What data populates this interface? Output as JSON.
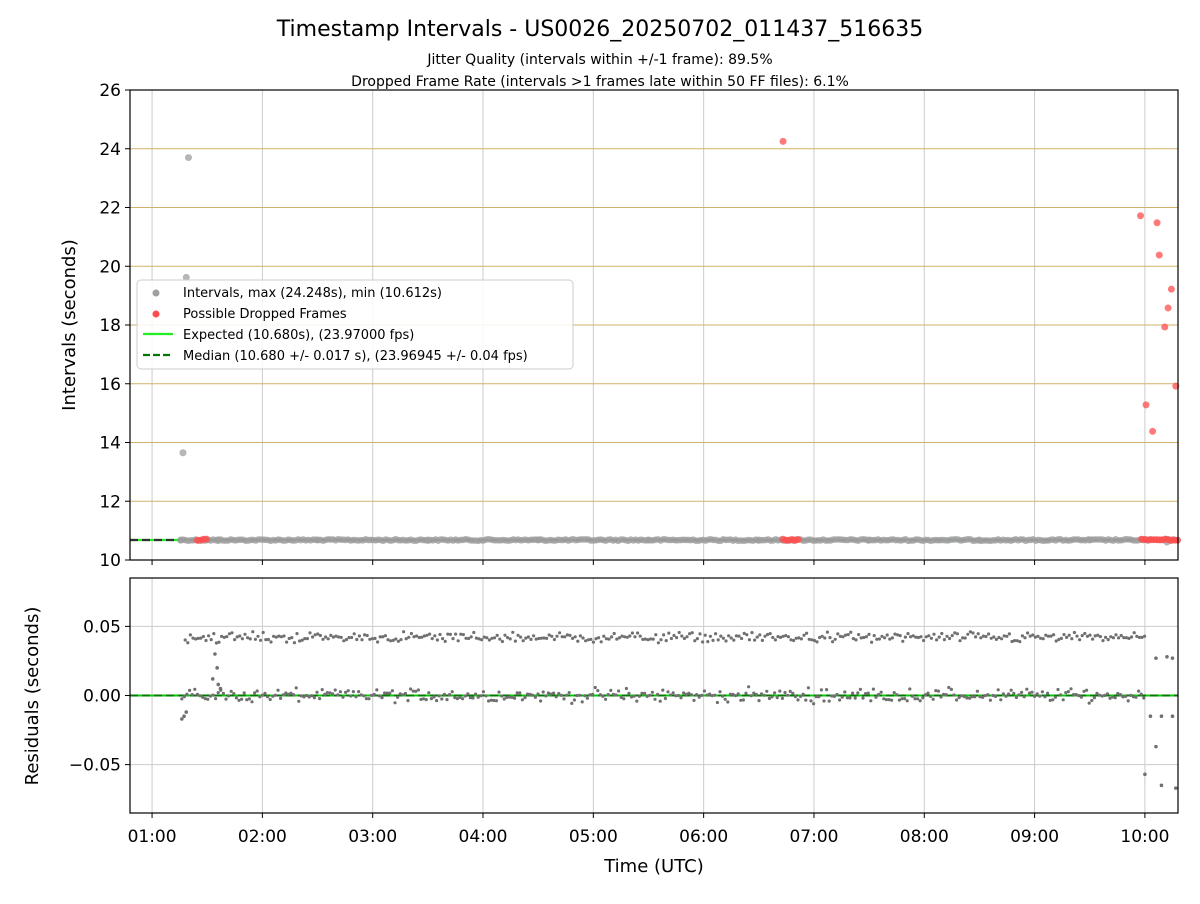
{
  "chart_data": [
    {
      "type": "scatter",
      "title": "Timestamp Intervals - US0026_20250702_011437_516635",
      "subtitle_lines": [
        "Jitter Quality (intervals within +/-1 frame): 89.5%",
        "Dropped Frame Rate (intervals >1 frames late within 50 FF files): 6.1%"
      ],
      "xlabel": "",
      "ylabel": "Intervals (seconds)",
      "x_unit": "hours since 00:00 UTC",
      "xlim": [
        0.8,
        10.3
      ],
      "ylim": [
        10,
        26
      ],
      "y_ticks": [
        10,
        12,
        14,
        16,
        18,
        20,
        22,
        24,
        26
      ],
      "y_tick_labels": [
        "10",
        "12",
        "14",
        "16",
        "18",
        "20",
        "22",
        "24",
        "26"
      ],
      "x_ticks": [
        1,
        2,
        3,
        4,
        5,
        6,
        7,
        8,
        9,
        10
      ],
      "grid": true,
      "legend_position": "center-left",
      "legend": [
        "Intervals, max (24.248s), min (10.612s)",
        "Possible Dropped Frames",
        "Expected (10.680s), (23.97000 fps)",
        "Median (10.680 +/- 0.017 s), (23.96945 +/- 0.04 fps)"
      ],
      "colors": {
        "intervals": "#9e9e9e",
        "dropped": "#ff4d4d",
        "expected": "#22ee22",
        "median": "#007700",
        "hgrid": "#d2b26a",
        "vgrid": "#cccccc"
      },
      "series": [
        {
          "name": "Intervals, max (24.248s), min (10.612s)",
          "points": [
            [
              1.26,
              10.68
            ],
            [
              1.28,
              13.65
            ],
            [
              1.31,
              19.62
            ],
            [
              1.33,
              23.7
            ],
            [
              1.6,
              10.66
            ],
            [
              2.5,
              10.68
            ],
            [
              3.5,
              10.68
            ],
            [
              4.5,
              10.68
            ],
            [
              5.5,
              10.68
            ],
            [
              6.5,
              10.68
            ],
            [
              7.5,
              10.68
            ],
            [
              8.5,
              10.68
            ],
            [
              9.5,
              10.68
            ],
            [
              10.2,
              10.61
            ]
          ],
          "dense_band": {
            "x_start": 1.26,
            "x_end": 10.3,
            "y": 10.68
          }
        },
        {
          "name": "Possible Dropped Frames",
          "points": [
            [
              6.72,
              24.25
            ],
            [
              9.96,
              21.72
            ],
            [
              10.01,
              15.28
            ],
            [
              10.07,
              14.38
            ],
            [
              10.11,
              21.48
            ],
            [
              10.13,
              20.38
            ],
            [
              10.18,
              17.93
            ],
            [
              10.21,
              18.58
            ],
            [
              10.24,
              19.22
            ],
            [
              10.28,
              15.92
            ]
          ],
          "clusters": [
            {
              "x_start": 1.41,
              "x_end": 1.5,
              "y": 10.69
            },
            {
              "x_start": 6.72,
              "x_end": 6.87,
              "y": 10.69
            },
            {
              "x_start": 9.97,
              "x_end": 10.3,
              "y": 10.69
            }
          ]
        },
        {
          "name": "Expected (10.680s), (23.97000 fps)",
          "line_y": 10.68
        },
        {
          "name": "Median (10.680 +/- 0.017 s), (23.96945 +/- 0.04 fps)",
          "line_y": 10.68
        }
      ]
    },
    {
      "type": "scatter",
      "xlabel": "Time (UTC)",
      "ylabel": "Residuals (seconds)",
      "x_unit": "hours since 00:00 UTC",
      "xlim": [
        0.8,
        10.3
      ],
      "ylim": [
        -0.085,
        0.085
      ],
      "y_ticks": [
        -0.05,
        0.0,
        0.05
      ],
      "y_tick_labels": [
        "−0.05",
        "0.00",
        "0.05"
      ],
      "x_ticks": [
        1,
        2,
        3,
        4,
        5,
        6,
        7,
        8,
        9,
        10
      ],
      "x_tick_labels": [
        "01:00",
        "02:00",
        "03:00",
        "04:00",
        "05:00",
        "06:00",
        "07:00",
        "08:00",
        "09:00",
        "10:00"
      ],
      "grid": true,
      "colors": {
        "residuals": "#707070",
        "zero_line": "#00cc00",
        "grid": "#cccccc"
      },
      "series": [
        {
          "name": "",
          "bands": [
            {
              "x_start": 1.27,
              "x_end": 10.0,
              "center": 0.0,
              "spread": 0.004
            },
            {
              "x_start": 1.3,
              "x_end": 10.0,
              "center": 0.042,
              "spread": 0.003
            }
          ],
          "points": [
            [
              1.27,
              -0.017
            ],
            [
              1.29,
              -0.015
            ],
            [
              1.31,
              -0.012
            ],
            [
              1.55,
              0.012
            ],
            [
              1.57,
              0.03
            ],
            [
              1.59,
              0.02
            ],
            [
              1.6,
              0.008
            ],
            [
              1.62,
              0.005
            ],
            [
              10.0,
              -0.057
            ],
            [
              10.1,
              -0.037
            ],
            [
              10.15,
              -0.065
            ],
            [
              10.28,
              -0.067
            ],
            [
              10.1,
              0.027
            ],
            [
              10.2,
              0.028
            ],
            [
              10.25,
              0.027
            ],
            [
              10.05,
              -0.015
            ],
            [
              10.15,
              -0.015
            ],
            [
              10.25,
              -0.015
            ]
          ]
        }
      ]
    }
  ]
}
